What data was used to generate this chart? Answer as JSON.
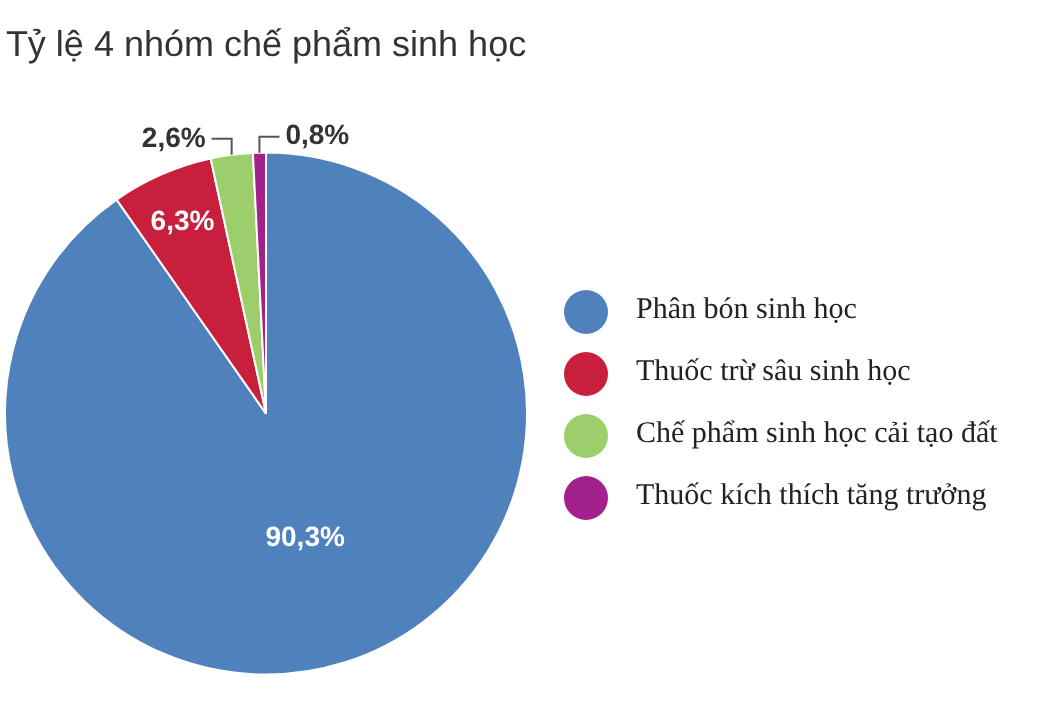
{
  "chart_data": {
    "type": "pie",
    "title": "Tỷ lệ 4 nhóm chế phẩm sinh học",
    "categories": [
      "Phân bón sinh học",
      "Thuốc trừ sâu sinh học",
      "Chế phẩm sinh học cải tạo đất",
      "Thuốc kích thích tăng trưởng"
    ],
    "values": [
      90.3,
      6.3,
      2.6,
      0.8
    ],
    "colors": [
      "#4f81bd",
      "#c8203c",
      "#9ccf6b",
      "#a3218c"
    ],
    "value_labels": [
      "90,3%",
      "6,3%",
      "2,6%",
      "0,8%"
    ],
    "legend": "right"
  }
}
